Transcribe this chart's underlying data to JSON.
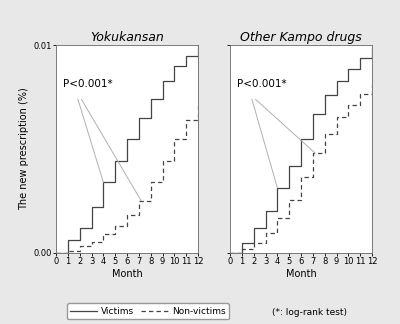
{
  "title_left": "Yokukansan",
  "title_right": "Other Kampo drugs",
  "ylabel": "The new prescription (%)",
  "xlabel": "Month",
  "pvalue_text": "P<0.001*",
  "legend_note": "(*: log-rank test)",
  "legend_victims": "Victims",
  "legend_nonvictims": "Non-victims",
  "ylim_left": [
    0.0,
    0.01
  ],
  "ylim_right": [
    0.0,
    0.15
  ],
  "yticks_left": [
    0.0,
    0.01
  ],
  "yticks_right": [
    0.0,
    0.15
  ],
  "xticks": [
    0,
    1,
    2,
    3,
    4,
    5,
    6,
    7,
    8,
    9,
    10,
    11,
    12
  ],
  "background_color": "#e8e8e8",
  "plot_bg_color": "#ffffff",
  "line_color": "#444444",
  "title_fontsize": 9,
  "tick_fontsize": 6,
  "label_fontsize": 7,
  "lw": 0.9,
  "yoku_victims_x": [
    0,
    0,
    1,
    1,
    2,
    2,
    3,
    3,
    4,
    4,
    5,
    5,
    6,
    6,
    7,
    7,
    8,
    8,
    9,
    9,
    10,
    10,
    11,
    11,
    12,
    12
  ],
  "yoku_victims_y": [
    0,
    0,
    0,
    0.0006,
    0.0006,
    0.0012,
    0.0012,
    0.0022,
    0.0022,
    0.0034,
    0.0034,
    0.0044,
    0.0044,
    0.0055,
    0.0055,
    0.0065,
    0.0065,
    0.0074,
    0.0074,
    0.0083,
    0.0083,
    0.009,
    0.009,
    0.0095,
    0.0095,
    0.01
  ],
  "yoku_nonvictims_x": [
    0,
    0,
    1,
    1,
    2,
    2,
    3,
    3,
    4,
    4,
    5,
    5,
    6,
    6,
    7,
    7,
    8,
    8,
    9,
    9,
    10,
    10,
    11,
    11,
    12,
    12
  ],
  "yoku_nonvictims_y": [
    0,
    0,
    0,
    0.0001,
    0.0001,
    0.0003,
    0.0003,
    0.0005,
    0.0005,
    0.0009,
    0.0009,
    0.0013,
    0.0013,
    0.0018,
    0.0018,
    0.0025,
    0.0025,
    0.0034,
    0.0034,
    0.0044,
    0.0044,
    0.0055,
    0.0055,
    0.0064,
    0.0064,
    0.0072
  ],
  "kampo_victims_x": [
    0,
    0,
    1,
    1,
    2,
    2,
    3,
    3,
    4,
    4,
    5,
    5,
    6,
    6,
    7,
    7,
    8,
    8,
    9,
    9,
    10,
    10,
    11,
    11,
    12,
    12
  ],
  "kampo_victims_y": [
    0,
    0,
    0,
    0.007,
    0.007,
    0.018,
    0.018,
    0.03,
    0.03,
    0.047,
    0.047,
    0.063,
    0.063,
    0.082,
    0.082,
    0.1,
    0.1,
    0.114,
    0.114,
    0.124,
    0.124,
    0.133,
    0.133,
    0.141,
    0.141,
    0.148
  ],
  "kampo_nonvictims_x": [
    0,
    0,
    1,
    1,
    2,
    2,
    3,
    3,
    4,
    4,
    5,
    5,
    6,
    6,
    7,
    7,
    8,
    8,
    9,
    9,
    10,
    10,
    11,
    11,
    12,
    12
  ],
  "kampo_nonvictims_y": [
    0,
    0,
    0,
    0.003,
    0.003,
    0.007,
    0.007,
    0.014,
    0.014,
    0.025,
    0.025,
    0.038,
    0.038,
    0.055,
    0.055,
    0.072,
    0.072,
    0.086,
    0.086,
    0.098,
    0.098,
    0.107,
    0.107,
    0.115,
    0.115,
    0.121
  ]
}
